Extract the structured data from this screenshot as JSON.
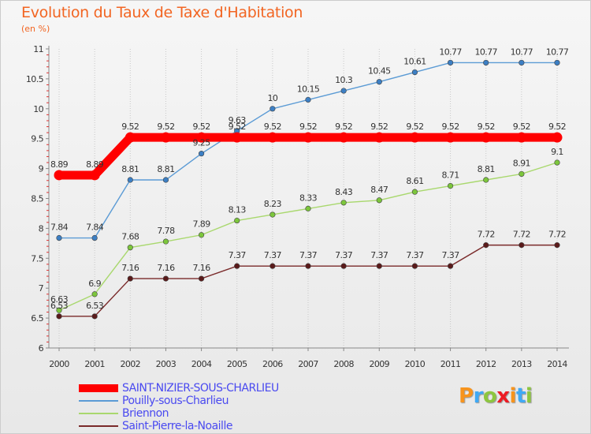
{
  "title": "Evolution du Taux de Taxe d'Habitation",
  "subtitle": "(en %)",
  "logo": {
    "text": "Proxiti",
    "colors": [
      "#f7941d",
      "#3fa9f5",
      "#8dc63f",
      "#ed1c24",
      "#f7941d",
      "#3fa9f5",
      "#8dc63f"
    ]
  },
  "chart_data": {
    "type": "line",
    "x": [
      2000,
      2001,
      2002,
      2003,
      2004,
      2005,
      2006,
      2007,
      2008,
      2009,
      2010,
      2011,
      2012,
      2013,
      2014
    ],
    "x_tick_labels": [
      "2000",
      "2001",
      "2002",
      "2003",
      "2004",
      "2005",
      "2006",
      "2007",
      "2008",
      "2009",
      "2010",
      "2011",
      "2012",
      "2013",
      "2014"
    ],
    "ylim": [
      6,
      11
    ],
    "y_ticks": [
      6,
      6.5,
      7,
      7.5,
      8,
      8.5,
      9,
      9.5,
      10,
      10.5,
      11
    ],
    "y_tick_labels": [
      "6",
      "6.5",
      "7",
      "7.5",
      "8",
      "8.5",
      "9",
      "9.5",
      "10",
      "10.5",
      "11"
    ],
    "grid": "vertical",
    "legend_position": "bottom-left",
    "series": [
      {
        "name": "SAINT-NIZIER-SOUS-CHARLIEU",
        "color": "#ff0000",
        "line": "thick",
        "values": [
          8.89,
          8.89,
          9.52,
          9.52,
          9.52,
          9.52,
          9.52,
          9.52,
          9.52,
          9.52,
          9.52,
          9.52,
          9.52,
          9.52,
          9.52
        ],
        "labels": [
          "8.89",
          "8.89",
          "9.52",
          "9.52",
          "9.52",
          "9.52",
          "9.52",
          "9.52",
          "9.52",
          "9.52",
          "9.52",
          "9.52",
          "9.52",
          "9.52",
          "9.52"
        ]
      },
      {
        "name": "Pouilly-sous-Charlieu",
        "color": "#5b9bd5",
        "marker": "#3c7fc4",
        "line": "thin",
        "values": [
          7.84,
          7.84,
          8.81,
          8.81,
          9.25,
          9.63,
          10,
          10.15,
          10.3,
          10.45,
          10.61,
          10.77,
          10.77,
          10.77,
          10.77
        ],
        "labels": [
          "7.84",
          "7.84",
          "8.81",
          "8.81",
          "9.25",
          "9.63",
          "10",
          "10.15",
          "10.3",
          "10.45",
          "10.61",
          "10.77",
          "10.77",
          "10.77",
          "10.77"
        ]
      },
      {
        "name": "Briennon",
        "color": "#a9d86e",
        "marker": "#7cc63c",
        "line": "thin",
        "values": [
          6.63,
          6.9,
          7.68,
          7.78,
          7.89,
          8.13,
          8.23,
          8.33,
          8.43,
          8.47,
          8.61,
          8.71,
          8.81,
          8.91,
          9.1
        ],
        "labels": [
          "6.63",
          "6.9",
          "7.68",
          "7.78",
          "7.89",
          "8.13",
          "8.23",
          "8.33",
          "8.43",
          "8.47",
          "8.61",
          "8.71",
          "8.81",
          "8.91",
          "9.1"
        ]
      },
      {
        "name": "Saint-Pierre-la-Noaille",
        "color": "#7a2a2a",
        "marker": "#5a1a1a",
        "line": "thin",
        "values": [
          6.53,
          6.53,
          7.16,
          7.16,
          7.16,
          7.37,
          7.37,
          7.37,
          7.37,
          7.37,
          7.37,
          7.37,
          7.72,
          7.72,
          7.72
        ],
        "labels": [
          "6.53",
          "6.53",
          "7.16",
          "7.16",
          "7.16",
          "7.37",
          "7.37",
          "7.37",
          "7.37",
          "7.37",
          "7.37",
          "7.37",
          "7.72",
          "7.72",
          "7.72"
        ]
      }
    ]
  }
}
